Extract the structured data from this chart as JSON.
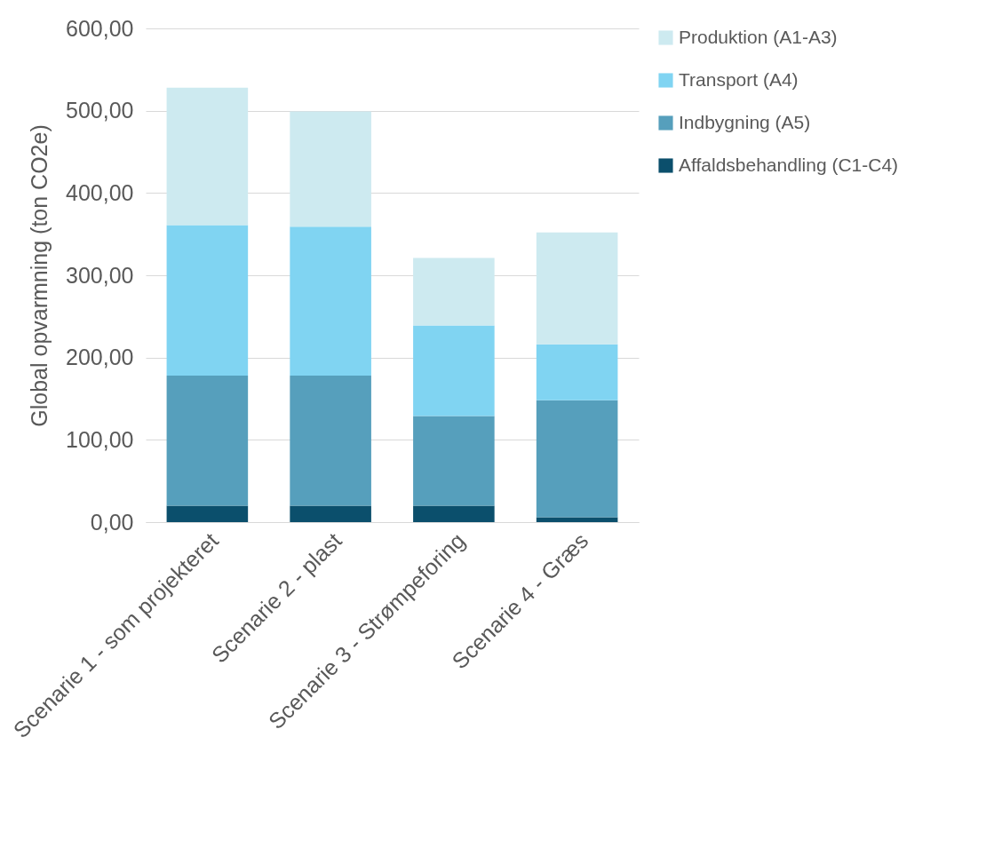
{
  "chart_data": {
    "type": "bar",
    "stacked": true,
    "ylabel": "Global opvarmning (ton CO2e)",
    "categories": [
      "Scenarie 1 - som projekteret",
      "Scenarie 2 - plast",
      "Scenarie 3 - Strømpeforing",
      "Scenarie 4 - Græs"
    ],
    "series": [
      {
        "name": "Affaldsbehandling (C1-C4)",
        "color": "#0b4f6c",
        "values": [
          20,
          20,
          20,
          6
        ]
      },
      {
        "name": "Indbygning (A5)",
        "color": "#569fbc",
        "values": [
          158,
          158,
          109,
          142
        ]
      },
      {
        "name": "Transport (A4)",
        "color": "#80d4f2",
        "values": [
          183,
          181,
          110,
          68
        ]
      },
      {
        "name": "Produktion (A1-A3)",
        "color": "#cdeaf0",
        "values": [
          167,
          140,
          82,
          136
        ]
      }
    ],
    "ylim": [
      0,
      600
    ],
    "yticks": [
      {
        "value": 0,
        "label": "0,00"
      },
      {
        "value": 100,
        "label": "100,00"
      },
      {
        "value": 200,
        "label": "200,00"
      },
      {
        "value": 300,
        "label": "300,00"
      },
      {
        "value": 400,
        "label": "400,00"
      },
      {
        "value": 500,
        "label": "500,00"
      },
      {
        "value": 600,
        "label": "600,00"
      }
    ],
    "grid": "y",
    "legend": "right"
  }
}
